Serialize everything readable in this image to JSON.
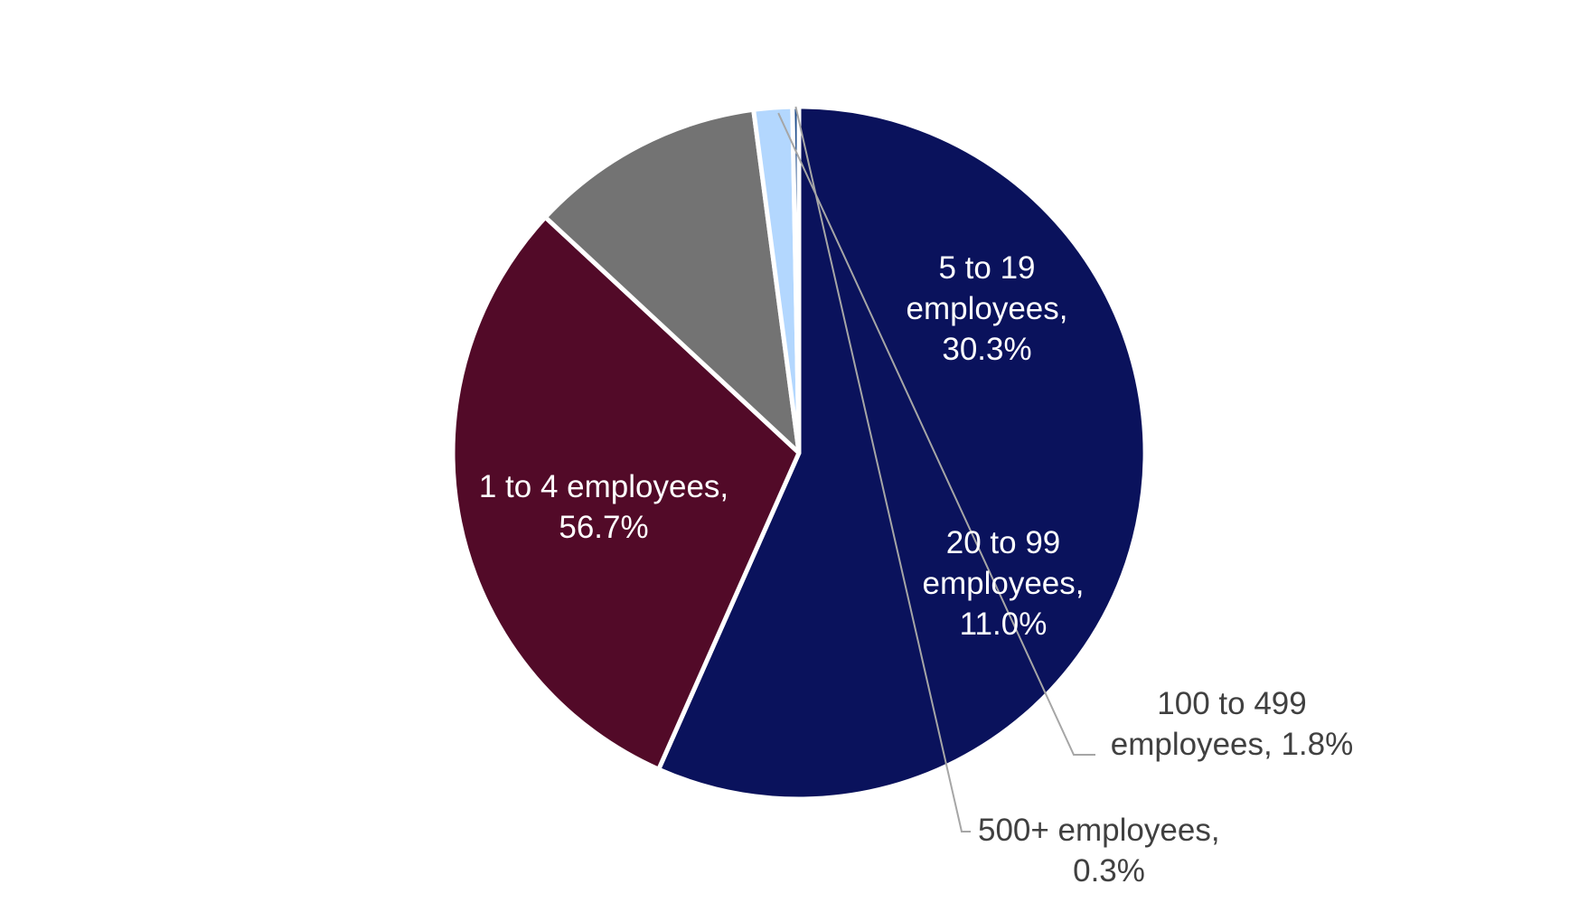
{
  "chart_data": {
    "type": "pie",
    "title": "",
    "slices": [
      {
        "label": "1 to 4 employees",
        "value": 56.7,
        "display": "56.7%",
        "color": "#0a125c",
        "label_style": "inside"
      },
      {
        "label": "5 to 19 employees",
        "value": 30.3,
        "display": "30.3%",
        "color": "#520a28",
        "label_style": "inside"
      },
      {
        "label": "20 to 99 employees",
        "value": 11.0,
        "display": "11.0%",
        "color": "#737373",
        "label_style": "inside"
      },
      {
        "label": "100 to 499 employees",
        "value": 1.8,
        "display": "1.8%",
        "color": "#b3d7fe",
        "label_style": "outside"
      },
      {
        "label": "500+ employees",
        "value": 0.3,
        "display": "0.3%",
        "color": "#1f4e8c",
        "label_style": "outside"
      }
    ],
    "label_lines": {
      "slice_0": [
        "1 to 4 employees,",
        "56.7%"
      ],
      "slice_1": [
        "5 to 19",
        "employees,",
        "30.3%"
      ],
      "slice_2": [
        "20 to 99",
        "employees,",
        "11.0%"
      ],
      "slice_3": [
        "100 to 499",
        "employees, 1.8%"
      ],
      "slice_4": [
        "500+ employees,",
        "0.3%"
      ]
    },
    "legend": "none",
    "start_angle": "12 o'clock",
    "direction": "clockwise"
  }
}
